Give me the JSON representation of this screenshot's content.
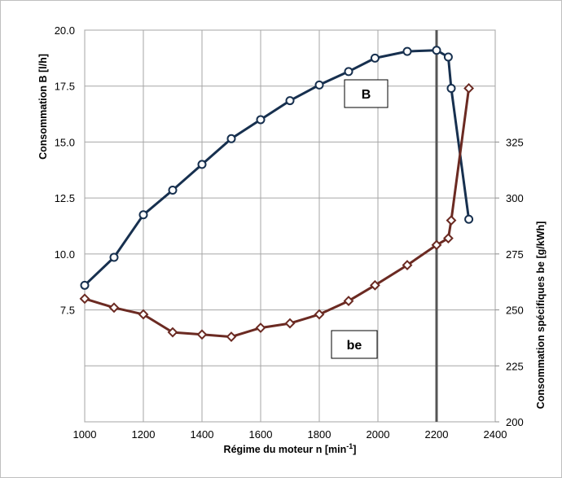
{
  "chart_data": {
    "type": "line",
    "xlabel": "Régime du moteur n [min",
    "xlabel_sup": "-1",
    "xlabel_end": "]",
    "ylabel_left": "Consommation B [l/h]",
    "ylabel_right": "Consommation spécifiques be [g/kWh]",
    "x_ticks": [
      "1000",
      "1200",
      "1400",
      "1600",
      "1800",
      "2000",
      "2200",
      "2400"
    ],
    "y_left_ticks": [
      "7.5",
      "10.0",
      "12.5",
      "15.0",
      "17.5",
      "20.0"
    ],
    "y_right_ticks": [
      "200",
      "225",
      "250",
      "275",
      "300",
      "325"
    ],
    "xlim": [
      1000,
      2400
    ],
    "ylim_left": [
      2.5,
      20.0
    ],
    "ylim_right": [
      200,
      375
    ],
    "grid": true,
    "vertical_marker_x": 2200,
    "series": [
      {
        "name": "B",
        "axis": "left",
        "color": "#17304f",
        "marker": "circle",
        "x": [
          1000,
          1100,
          1200,
          1300,
          1400,
          1500,
          1600,
          1700,
          1800,
          1900,
          1990,
          2100,
          2200,
          2240,
          2250,
          2310
        ],
        "y": [
          8.6,
          9.85,
          11.75,
          12.85,
          14.0,
          15.15,
          16.0,
          16.85,
          17.55,
          18.15,
          18.75,
          19.05,
          19.1,
          18.8,
          17.4,
          11.55
        ]
      },
      {
        "name": "be",
        "axis": "right",
        "color": "#6b2a22",
        "marker": "diamond",
        "x": [
          1000,
          1100,
          1200,
          1300,
          1400,
          1500,
          1600,
          1700,
          1800,
          1900,
          1990,
          2100,
          2200,
          2240,
          2250,
          2310
        ],
        "y": [
          255,
          251,
          248,
          240,
          239,
          238,
          242,
          244,
          248,
          254,
          261,
          270,
          279,
          282,
          290,
          349
        ]
      }
    ]
  }
}
